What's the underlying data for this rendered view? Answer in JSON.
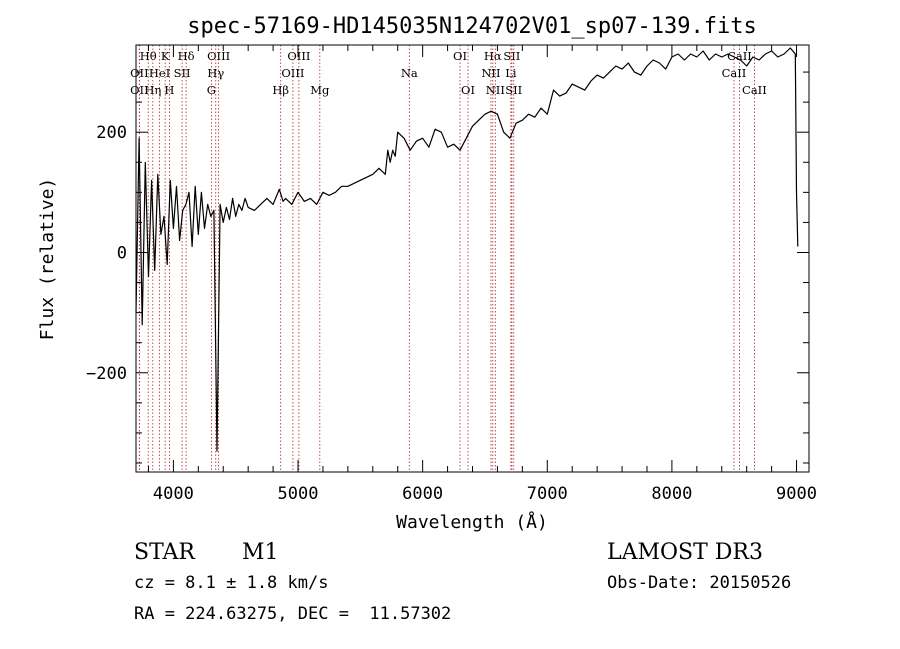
{
  "chart_data": {
    "type": "line",
    "title": "spec-57169-HD145035N124702V01_sp07-139.fits",
    "xlabel": "Wavelength (Å)",
    "ylabel": "Flux (relative)",
    "xlim": [
      3700,
      9100
    ],
    "ylim": [
      -365,
      345
    ],
    "xticks": [
      "4000",
      "5000",
      "6000",
      "7000",
      "8000",
      "9000"
    ],
    "yticks": [
      "−200",
      "0",
      "200"
    ],
    "grid": false,
    "series": [
      {
        "x": [
          3700,
          3725,
          3750,
          3775,
          3800,
          3825,
          3850,
          3875,
          3900,
          3925,
          3950,
          3975,
          4000,
          4025,
          4050,
          4075,
          4100,
          4125,
          4150,
          4175,
          4200,
          4225,
          4250,
          4275,
          4300,
          4325,
          4350,
          4375,
          4400,
          4425,
          4450,
          4475,
          4500,
          4525,
          4550,
          4575,
          4600,
          4650,
          4700,
          4750,
          4800,
          4850,
          4880,
          4900,
          4950,
          5000,
          5050,
          5100,
          5150,
          5200,
          5250,
          5300,
          5350,
          5400,
          5450,
          5500,
          5550,
          5600,
          5650,
          5700,
          5720,
          5740,
          5760,
          5780,
          5800,
          5850,
          5900,
          5950,
          6000,
          6050,
          6100,
          6150,
          6200,
          6250,
          6300,
          6350,
          6400,
          6450,
          6500,
          6550,
          6600,
          6650,
          6700,
          6750,
          6800,
          6850,
          6900,
          6950,
          7000,
          7050,
          7100,
          7150,
          7200,
          7250,
          7300,
          7350,
          7400,
          7450,
          7500,
          7550,
          7600,
          7650,
          7700,
          7750,
          7800,
          7850,
          7900,
          7950,
          8000,
          8050,
          8100,
          8150,
          8200,
          8250,
          8300,
          8350,
          8400,
          8450,
          8500,
          8550,
          8600,
          8650,
          8700,
          8750,
          8800,
          8850,
          8900,
          8950,
          8990,
          9000,
          9010
        ],
        "y": [
          -100,
          190,
          -120,
          150,
          -40,
          120,
          -30,
          130,
          30,
          60,
          -20,
          120,
          40,
          110,
          20,
          70,
          80,
          100,
          10,
          110,
          30,
          100,
          40,
          80,
          60,
          70,
          -330,
          80,
          50,
          75,
          55,
          90,
          60,
          80,
          70,
          90,
          75,
          70,
          80,
          90,
          80,
          105,
          85,
          90,
          80,
          100,
          85,
          90,
          80,
          100,
          95,
          100,
          110,
          110,
          115,
          120,
          125,
          130,
          140,
          130,
          170,
          150,
          170,
          160,
          200,
          190,
          170,
          185,
          190,
          175,
          205,
          200,
          175,
          180,
          170,
          190,
          210,
          220,
          230,
          235,
          230,
          200,
          190,
          215,
          220,
          230,
          225,
          240,
          230,
          270,
          260,
          265,
          280,
          275,
          270,
          285,
          295,
          290,
          300,
          310,
          305,
          315,
          300,
          295,
          310,
          320,
          315,
          305,
          325,
          330,
          320,
          330,
          325,
          335,
          320,
          330,
          325,
          330,
          325,
          320,
          310,
          325,
          320,
          330,
          335,
          325,
          330,
          340,
          330,
          100,
          10
        ]
      }
    ],
    "lines": [
      {
        "name": "Hθ",
        "x": 3798,
        "row": 0
      },
      {
        "name": "OII",
        "x": 3727,
        "row": 1
      },
      {
        "name": "OII",
        "x": 3727,
        "row": 2
      },
      {
        "name": "K",
        "x": 3934,
        "row": 0
      },
      {
        "name": "HeI",
        "x": 3889,
        "row": 1
      },
      {
        "name": "Hη",
        "x": 3835,
        "row": 2
      },
      {
        "name": "Hδ",
        "x": 4102,
        "row": 0
      },
      {
        "name": "SII",
        "x": 4070,
        "row": 1
      },
      {
        "name": "H",
        "x": 3968,
        "row": 2
      },
      {
        "name": "OIII",
        "x": 4363,
        "row": 0
      },
      {
        "name": "Hγ",
        "x": 4340,
        "row": 1
      },
      {
        "name": "G",
        "x": 4305,
        "row": 2
      },
      {
        "name": "OIII",
        "x": 5007,
        "row": 0
      },
      {
        "name": "OIII",
        "x": 4959,
        "row": 1
      },
      {
        "name": "Hβ",
        "x": 4861,
        "row": 2
      },
      {
        "name": "Mg",
        "x": 5175,
        "row": 2
      },
      {
        "name": "Na",
        "x": 5893,
        "row": 1
      },
      {
        "name": "OI",
        "x": 6300,
        "row": 0
      },
      {
        "name": "OI",
        "x": 6364,
        "row": 2
      },
      {
        "name": "Hα",
        "x": 6563,
        "row": 0
      },
      {
        "name": "SII",
        "x": 6716,
        "row": 0
      },
      {
        "name": "NII",
        "x": 6548,
        "row": 1
      },
      {
        "name": "Li",
        "x": 6708,
        "row": 1
      },
      {
        "name": "NII",
        "x": 6583,
        "row": 2
      },
      {
        "name": "SII",
        "x": 6731,
        "row": 2
      },
      {
        "name": "CaII",
        "x": 8542,
        "row": 0
      },
      {
        "name": "CaII",
        "x": 8498,
        "row": 1
      },
      {
        "name": "CaII",
        "x": 8662,
        "row": 2
      }
    ]
  },
  "info": {
    "object_class": "STAR",
    "subclass": "M1",
    "survey": "LAMOST DR3",
    "cz": "cz = 8.1 ± 1.8 km/s",
    "obs_date": "Obs-Date: 20150526",
    "coords": "RA = 224.63275, DEC =  11.57302"
  }
}
